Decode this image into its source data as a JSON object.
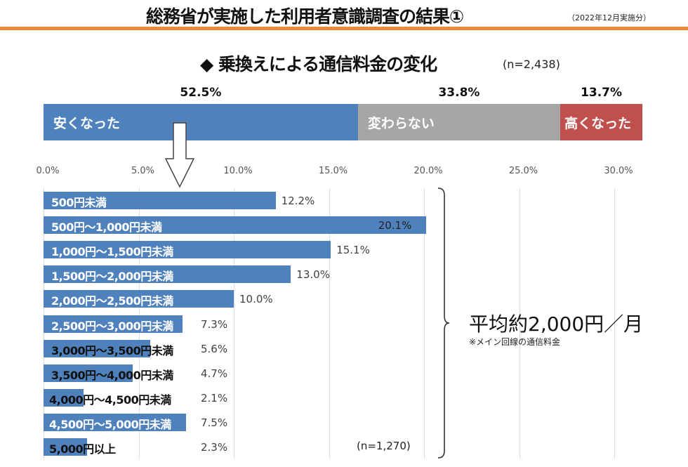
{
  "title": "総務省が実施した利用者意識調査の結果①",
  "date_note": "（2022年12月実施分）",
  "chart_data": [
    {
      "type": "bar",
      "stacked": true,
      "title": "◆ 乗換えによる通信料金の変化",
      "n_label": "(n=2,438)",
      "categories": [
        "安くなった",
        "変わらない",
        "高くなった"
      ],
      "values": [
        52.5,
        33.8,
        13.7
      ],
      "value_labels": [
        "52.5%",
        "33.8%",
        "13.7%"
      ],
      "colors": [
        "#4f81bd",
        "#a6a6a6",
        "#c0504d"
      ]
    },
    {
      "type": "bar",
      "orientation": "horizontal",
      "xlim": [
        0,
        30
      ],
      "xticks": [
        "0.0%",
        "5.0%",
        "10.0%",
        "15.0%",
        "20.0%",
        "25.0%",
        "30.0%"
      ],
      "grid": true,
      "categories": [
        "500円未満",
        "500円～1,000円未満",
        "1,000円～1,500円未満",
        "1,500円～2,000円未満",
        "2,000円～2,500円未満",
        "2,500円～3,000円未満",
        "3,000円～3,500円未満",
        "3,500円～4,000円未満",
        "4,000円～4,500円未満",
        "4,500円～5,000円未満",
        "5,000円以上"
      ],
      "values": [
        12.2,
        20.1,
        15.1,
        13.0,
        10.0,
        7.3,
        5.6,
        4.7,
        2.1,
        7.5,
        2.3
      ],
      "value_labels": [
        "12.2%",
        "20.1%",
        "15.1%",
        "13.0%",
        "10.0%",
        "7.3%",
        "5.6%",
        "4.7%",
        "2.1%",
        "7.5%",
        "2.3%"
      ],
      "color": "#4f81bd",
      "n_label": "(n=1,270)",
      "annotation": "平均約2,000円／月",
      "annotation_note": "※メイン回線の通信料金"
    }
  ]
}
